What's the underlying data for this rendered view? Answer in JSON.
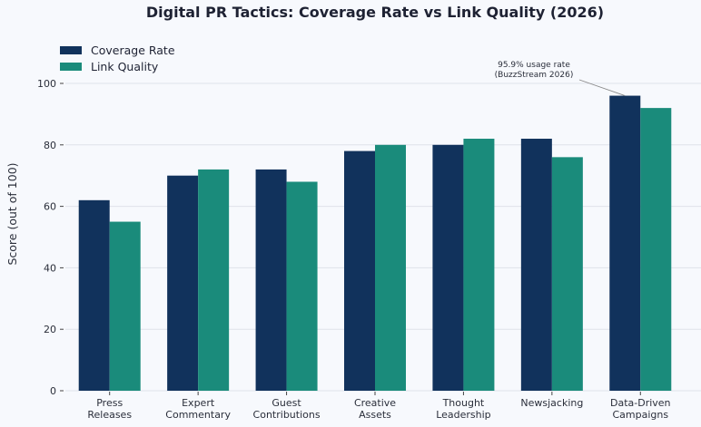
{
  "chart_data": {
    "type": "bar",
    "title": "Digital PR Tactics: Coverage Rate vs Link Quality (2026)",
    "xlabel": "",
    "ylabel": "Score (out of 100)",
    "ylim": [
      0,
      110
    ],
    "yticks": [
      0,
      20,
      40,
      60,
      80,
      100
    ],
    "grid": true,
    "legend_position": "top-left",
    "categories": [
      [
        "Press",
        "Releases"
      ],
      [
        "Expert",
        "Commentary"
      ],
      [
        "Guest",
        "Contributions"
      ],
      [
        "Creative",
        "Assets"
      ],
      [
        "Thought",
        "Leadership"
      ],
      [
        "Newsjacking"
      ],
      [
        "Data-Driven",
        "Campaigns"
      ]
    ],
    "series": [
      {
        "name": "Coverage Rate",
        "color": "#11325c",
        "values": [
          62,
          70,
          72,
          78,
          80,
          82,
          96
        ]
      },
      {
        "name": "Link Quality",
        "color": "#1a8b7b",
        "values": [
          55,
          72,
          68,
          80,
          82,
          76,
          92
        ]
      }
    ],
    "annotation": {
      "lines": [
        "95.9% usage rate",
        "(BuzzStream 2026)"
      ],
      "category_index": 6,
      "series_index": 0
    }
  }
}
